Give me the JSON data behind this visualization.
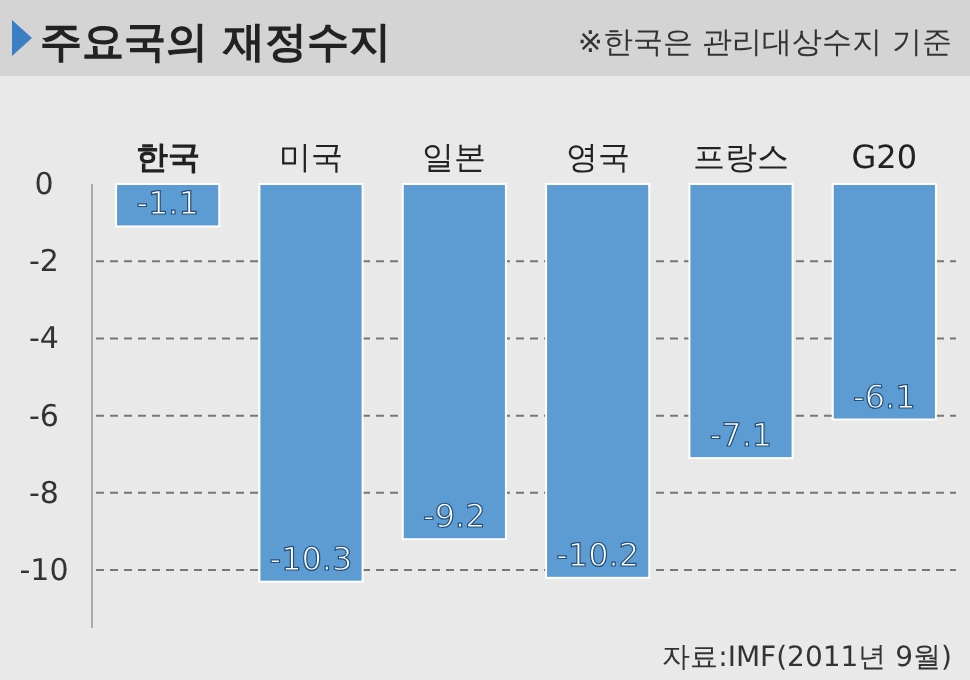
{
  "chart_data": {
    "type": "bar",
    "title": "주요국의 재정수지",
    "subtitle": "※한국은 관리대상수지 기준",
    "annotations": [
      "자료:IMF(2011년 9월)"
    ],
    "categories": [
      "한국",
      "미국",
      "일본",
      "영국",
      "프랑스",
      "G20"
    ],
    "values": [
      -1.1,
      -10.3,
      -9.2,
      -10.2,
      -7.1,
      -6.1
    ],
    "color": "#5d9bd3",
    "ylim": [
      -11.5,
      0
    ],
    "yticks": [
      0,
      -2,
      -4,
      -6,
      -8,
      -10
    ],
    "grid": "y",
    "data_labels": true
  }
}
